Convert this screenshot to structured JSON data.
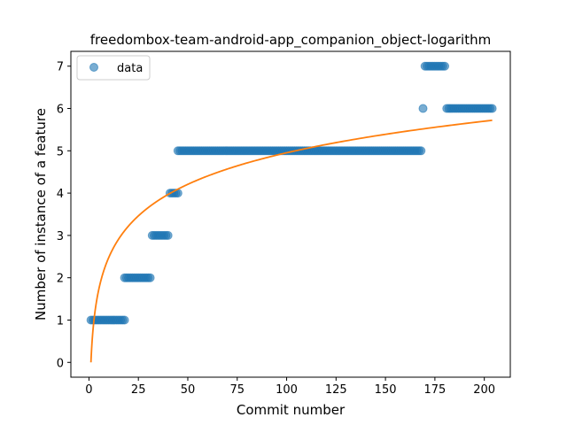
{
  "chart_data": {
    "type": "scatter",
    "title": "freedombox-team-android-app_companion_object-logarithm",
    "xlabel": "Commit number",
    "ylabel": "Number of instance of a feature",
    "xlim": [
      -9.15,
      213.15
    ],
    "ylim": [
      -0.35,
      7.35
    ],
    "x_ticks": [
      0,
      25,
      50,
      75,
      100,
      125,
      150,
      175,
      200
    ],
    "y_ticks": [
      0,
      1,
      2,
      3,
      4,
      5,
      6,
      7
    ],
    "legend": {
      "position": "top-left",
      "entries": [
        "data"
      ]
    },
    "grid": false,
    "colors": {
      "data": "#1f77b4",
      "fit": "#ff7f0e"
    },
    "series": [
      {
        "name": "data",
        "kind": "points",
        "segments": [
          {
            "x_from": 1,
            "x_to": 18,
            "y": 1
          },
          {
            "x_from": 18,
            "x_to": 31,
            "y": 2
          },
          {
            "x_from": 32,
            "x_to": 40,
            "y": 3
          },
          {
            "x_from": 41,
            "x_to": 45,
            "y": 4
          },
          {
            "x_from": 45,
            "x_to": 168,
            "y": 5
          },
          {
            "x_from": 169,
            "x_to": 169,
            "y": 6
          },
          {
            "x_from": 170,
            "x_to": 180,
            "y": 7
          },
          {
            "x_from": 181,
            "x_to": 204,
            "y": 6
          }
        ]
      },
      {
        "kind": "line",
        "curve": "logarithmic",
        "x_range": [
          1,
          204
        ],
        "points": [
          [
            1,
            0.0
          ],
          [
            204,
            5.72
          ]
        ]
      }
    ]
  }
}
